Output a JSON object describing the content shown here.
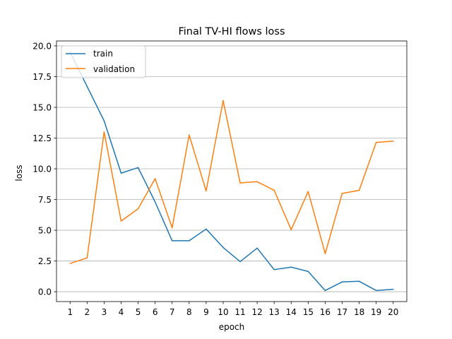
{
  "chart_data": {
    "type": "line",
    "title": "Final TV-HI flows loss",
    "xlabel": "epoch",
    "ylabel": "loss",
    "x": [
      1,
      2,
      3,
      4,
      5,
      6,
      7,
      8,
      9,
      10,
      11,
      12,
      13,
      14,
      15,
      16,
      17,
      18,
      19,
      20
    ],
    "xticks": [
      "1",
      "2",
      "3",
      "4",
      "5",
      "6",
      "7",
      "8",
      "9",
      "10",
      "11",
      "12",
      "13",
      "14",
      "15",
      "16",
      "17",
      "18",
      "19",
      "20"
    ],
    "yticks": [
      "0.0",
      "2.5",
      "5.0",
      "7.5",
      "10.0",
      "12.5",
      "15.0",
      "17.5",
      "20.0"
    ],
    "xlim": [
      0.2,
      20.8
    ],
    "ylim": [
      -0.8,
      20.4
    ],
    "grid": "horizontal",
    "legend_position": "top-left",
    "series": [
      {
        "name": "train",
        "color": "#1f77b4",
        "values": [
          19.5,
          16.7,
          13.9,
          9.65,
          10.1,
          7.3,
          4.15,
          4.15,
          5.1,
          3.6,
          2.45,
          3.55,
          1.8,
          2.0,
          1.65,
          0.1,
          0.8,
          0.85,
          0.1,
          0.2
        ]
      },
      {
        "name": "validation",
        "color": "#ff7f0e",
        "values": [
          2.3,
          2.75,
          13.0,
          5.75,
          6.75,
          9.2,
          5.2,
          12.75,
          8.2,
          15.55,
          8.85,
          8.95,
          8.25,
          5.05,
          8.15,
          3.1,
          8.0,
          8.25,
          12.15,
          12.25
        ]
      }
    ]
  }
}
